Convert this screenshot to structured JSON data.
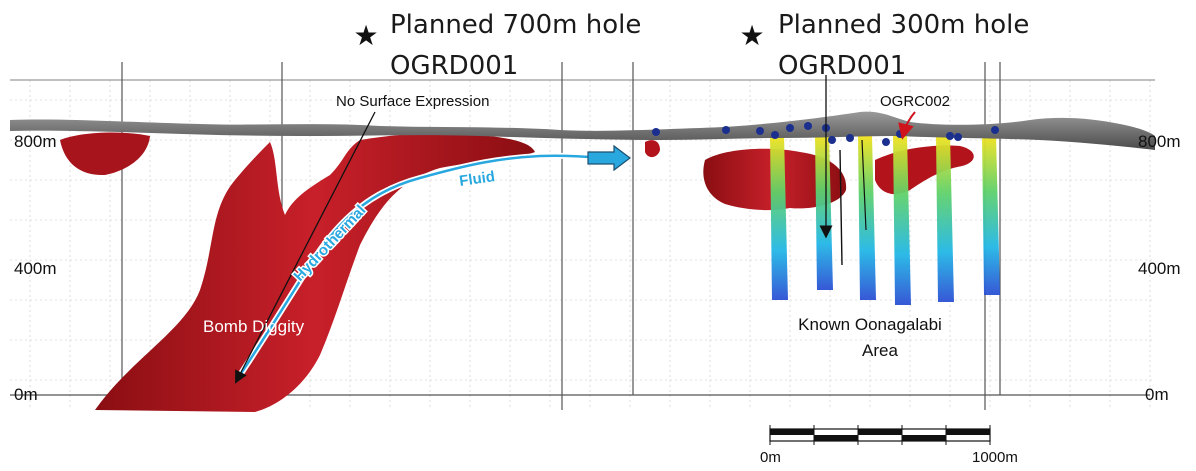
{
  "planned_holes": [
    {
      "title": "Planned 700m hole",
      "id": "OGRD001"
    },
    {
      "title": "Planned 300m hole",
      "id": "OGRD001"
    }
  ],
  "labels": {
    "no_surface": "No Surface Expression",
    "ogrc": "OGRC002",
    "fluid": "Fluid",
    "hydrothermal": "Hydrothermal",
    "bomb": "Bomb Diggity",
    "known_line1": "Known Oonagalabi",
    "known_line2": "Area"
  },
  "elevations": {
    "left": [
      "800m",
      "400m",
      "0m"
    ],
    "right": [
      "800m",
      "400m",
      "0m"
    ]
  },
  "scale_bar": {
    "start": "0m",
    "end": "1000m"
  },
  "colors": {
    "orebody": "#b3141c",
    "surface": "#6d6d6d",
    "fluid_path": "#29a8e0",
    "grid": "#c8c8c8"
  }
}
